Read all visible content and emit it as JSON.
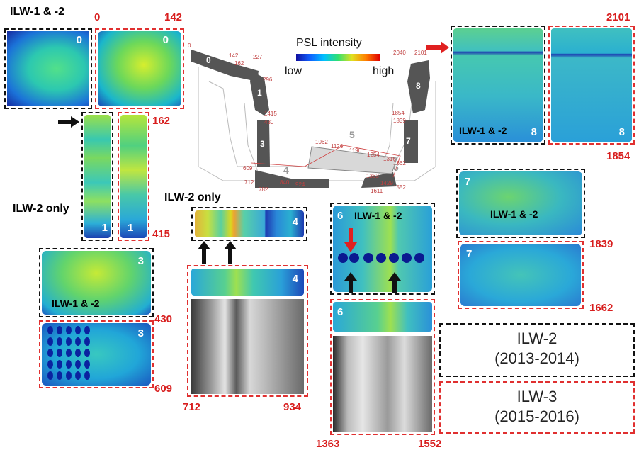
{
  "colors": {
    "ilw2_frame": "#111111",
    "ilw3_frame": "#e03030",
    "number_red": "#d81e1e"
  },
  "colorbar": {
    "title": "PSL intensity",
    "low": "low",
    "high": "high"
  },
  "group_labels": {
    "tl": "ILW-1 & -2",
    "ilw2_left": "ILW-2 only",
    "ilw2_mid": "ILW-2 only",
    "tile3": "ILW-1 & -2",
    "tile6": "ILW-1 & -2",
    "tile7": "ILW-1 & -2",
    "tile8": "ILW-1 & -2"
  },
  "tile_numbers": [
    "0",
    "0",
    "1",
    "1",
    "3",
    "3",
    "4",
    "4",
    "6",
    "6",
    "7",
    "7",
    "8",
    "8"
  ],
  "positions": {
    "p0": "0",
    "p142": "142",
    "p162": "162",
    "p415": "415",
    "p430": "430",
    "p609": "609",
    "p712": "712",
    "p934": "934",
    "p1363": "1363",
    "p1552": "1552",
    "p1662": "1662",
    "p1839": "1839",
    "p1854": "1854",
    "p2101": "2101"
  },
  "diagram": {
    "labels": [
      "0",
      "142",
      "162",
      "227",
      "296",
      "1415",
      "430",
      "609",
      "712",
      "782",
      "840",
      "924",
      "1062",
      "1126",
      "1190",
      "1254",
      "1316",
      "1363",
      "1429",
      "1552",
      "1611",
      "1662",
      "1839",
      "1854",
      "2040",
      "2101"
    ],
    "tile_ids": [
      "0",
      "1",
      "3",
      "4",
      "5",
      "6",
      "7",
      "8"
    ]
  },
  "legend": {
    "ilw2_line1": "ILW-2",
    "ilw2_line2": "(2013-2014)",
    "ilw3_line1": "ILW-3",
    "ilw3_line2": "(2015-2016)"
  }
}
